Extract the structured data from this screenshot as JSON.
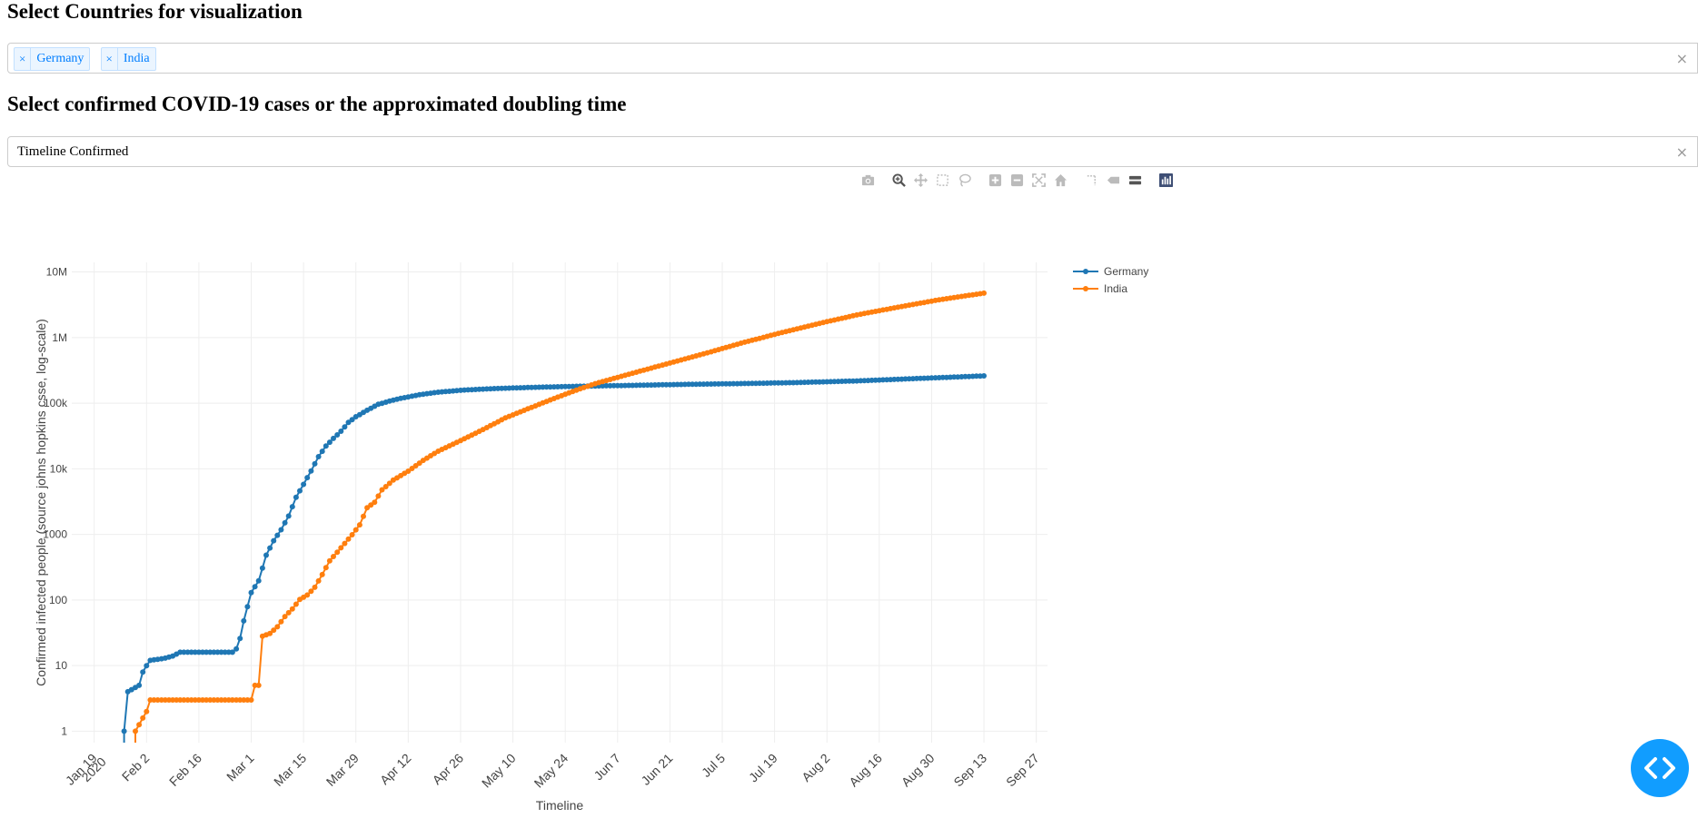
{
  "page": {
    "countries_heading": "Select Countries for visualization",
    "metric_heading": "Select confirmed COVID-19 cases or the approximated doubling time"
  },
  "country_select": {
    "selected": [
      "Germany",
      "India"
    ],
    "remove_glyph": "×",
    "clear_glyph": "×"
  },
  "metric_select": {
    "value": "Timeline Confirmed",
    "clear_glyph": "×"
  },
  "modebar": {
    "icons": [
      "camera-icon",
      "zoom-icon",
      "pan-icon",
      "box-select-icon",
      "lasso-select-icon",
      "zoom-in-icon",
      "zoom-out-icon",
      "autoscale-icon",
      "reset-axes-icon",
      "spike-lines-icon",
      "hover-closest-icon",
      "hover-compare-icon",
      "plotly-logo-icon"
    ]
  },
  "chart_data": {
    "type": "line",
    "xlabel": "Timeline",
    "ylabel": "Confirmed infected people (source johns hopkins csse, log-scale)",
    "yscale": "log",
    "ylim": [
      0.67,
      14000000
    ],
    "xlim": [
      "2020-01-13",
      "2020-09-30"
    ],
    "x_ticks": [
      {
        "date": "2020-01-19",
        "label": "Jan 19",
        "label2": "2020"
      },
      {
        "date": "2020-02-02",
        "label": "Feb 2"
      },
      {
        "date": "2020-02-16",
        "label": "Feb 16"
      },
      {
        "date": "2020-03-01",
        "label": "Mar 1"
      },
      {
        "date": "2020-03-15",
        "label": "Mar 15"
      },
      {
        "date": "2020-03-29",
        "label": "Mar 29"
      },
      {
        "date": "2020-04-12",
        "label": "Apr 12"
      },
      {
        "date": "2020-04-26",
        "label": "Apr 26"
      },
      {
        "date": "2020-05-10",
        "label": "May 10"
      },
      {
        "date": "2020-05-24",
        "label": "May 24"
      },
      {
        "date": "2020-06-07",
        "label": "Jun 7"
      },
      {
        "date": "2020-06-21",
        "label": "Jun 21"
      },
      {
        "date": "2020-07-05",
        "label": "Jul 5"
      },
      {
        "date": "2020-07-19",
        "label": "Jul 19"
      },
      {
        "date": "2020-08-02",
        "label": "Aug 2"
      },
      {
        "date": "2020-08-16",
        "label": "Aug 16"
      },
      {
        "date": "2020-08-30",
        "label": "Aug 30"
      },
      {
        "date": "2020-09-13",
        "label": "Sep 13"
      },
      {
        "date": "2020-09-27",
        "label": "Sep 27"
      }
    ],
    "y_ticks": [
      {
        "value": 1,
        "label": "1"
      },
      {
        "value": 10,
        "label": "10"
      },
      {
        "value": 100,
        "label": "100"
      },
      {
        "value": 1000,
        "label": "1000"
      },
      {
        "value": 10000,
        "label": "10k"
      },
      {
        "value": 100000,
        "label": "100k"
      },
      {
        "value": 1000000,
        "label": "1M"
      },
      {
        "value": 10000000,
        "label": "10M"
      }
    ],
    "grid": true,
    "legend_position": "top-right",
    "series": [
      {
        "name": "Germany",
        "color": "#1f77b4",
        "points": [
          [
            "2020-01-27",
            1
          ],
          [
            "2020-01-28",
            4
          ],
          [
            "2020-01-31",
            5
          ],
          [
            "2020-02-01",
            8
          ],
          [
            "2020-02-02",
            10
          ],
          [
            "2020-02-03",
            12
          ],
          [
            "2020-02-07",
            13
          ],
          [
            "2020-02-09",
            14
          ],
          [
            "2020-02-11",
            16
          ],
          [
            "2020-02-25",
            16
          ],
          [
            "2020-02-26",
            18
          ],
          [
            "2020-02-27",
            26
          ],
          [
            "2020-02-28",
            48
          ],
          [
            "2020-03-01",
            130
          ],
          [
            "2020-03-03",
            196
          ],
          [
            "2020-03-05",
            482
          ],
          [
            "2020-03-07",
            800
          ],
          [
            "2020-03-09",
            1176
          ],
          [
            "2020-03-11",
            1908
          ],
          [
            "2020-03-13",
            3675
          ],
          [
            "2020-03-15",
            5795
          ],
          [
            "2020-03-17",
            9257
          ],
          [
            "2020-03-19",
            15320
          ],
          [
            "2020-03-21",
            22213
          ],
          [
            "2020-03-23",
            29056
          ],
          [
            "2020-03-25",
            37323
          ],
          [
            "2020-03-27",
            50871
          ],
          [
            "2020-03-29",
            62095
          ],
          [
            "2020-04-01",
            77872
          ],
          [
            "2020-04-04",
            96092
          ],
          [
            "2020-04-07",
            107663
          ],
          [
            "2020-04-10",
            118235
          ],
          [
            "2020-04-15",
            134753
          ],
          [
            "2020-04-20",
            147065
          ],
          [
            "2020-04-27",
            158758
          ],
          [
            "2020-05-05",
            167007
          ],
          [
            "2020-05-15",
            174098
          ],
          [
            "2020-05-28",
            181196
          ],
          [
            "2020-06-10",
            186522
          ],
          [
            "2020-06-25",
            193499
          ],
          [
            "2020-07-10",
            198963
          ],
          [
            "2020-07-25",
            206242
          ],
          [
            "2020-08-10",
            218519
          ],
          [
            "2020-08-25",
            236429
          ],
          [
            "2020-09-05",
            249985
          ],
          [
            "2020-09-13",
            260817
          ]
        ]
      },
      {
        "name": "India",
        "color": "#ff7f0e",
        "points": [
          [
            "2020-01-30",
            1
          ],
          [
            "2020-02-02",
            2
          ],
          [
            "2020-02-03",
            3
          ],
          [
            "2020-03-01",
            3
          ],
          [
            "2020-03-02",
            5
          ],
          [
            "2020-03-03",
            5
          ],
          [
            "2020-03-04",
            28
          ],
          [
            "2020-03-06",
            31
          ],
          [
            "2020-03-08",
            39
          ],
          [
            "2020-03-10",
            56
          ],
          [
            "2020-03-12",
            73
          ],
          [
            "2020-03-14",
            102
          ],
          [
            "2020-03-16",
            119
          ],
          [
            "2020-03-18",
            156
          ],
          [
            "2020-03-20",
            244
          ],
          [
            "2020-03-22",
            396
          ],
          [
            "2020-03-24",
            536
          ],
          [
            "2020-03-26",
            727
          ],
          [
            "2020-03-28",
            987
          ],
          [
            "2020-03-30",
            1397
          ],
          [
            "2020-04-01",
            2543
          ],
          [
            "2020-04-03",
            3082
          ],
          [
            "2020-04-05",
            4778
          ],
          [
            "2020-04-08",
            6725
          ],
          [
            "2020-04-12",
            9205
          ],
          [
            "2020-04-16",
            13430
          ],
          [
            "2020-04-20",
            18539
          ],
          [
            "2020-04-26",
            26917
          ],
          [
            "2020-05-02",
            39699
          ],
          [
            "2020-05-08",
            59695
          ],
          [
            "2020-05-14",
            81997
          ],
          [
            "2020-05-20",
            112028
          ],
          [
            "2020-05-26",
            150793
          ],
          [
            "2020-06-01",
            198370
          ],
          [
            "2020-06-10",
            276146
          ],
          [
            "2020-06-20",
            395048
          ],
          [
            "2020-07-01",
            585481
          ],
          [
            "2020-07-10",
            820916
          ],
          [
            "2020-07-20",
            1155191
          ],
          [
            "2020-08-01",
            1695988
          ],
          [
            "2020-08-10",
            2215074
          ],
          [
            "2020-08-20",
            2836925
          ],
          [
            "2020-09-01",
            3769523
          ],
          [
            "2020-09-13",
            4754356
          ]
        ]
      }
    ]
  }
}
